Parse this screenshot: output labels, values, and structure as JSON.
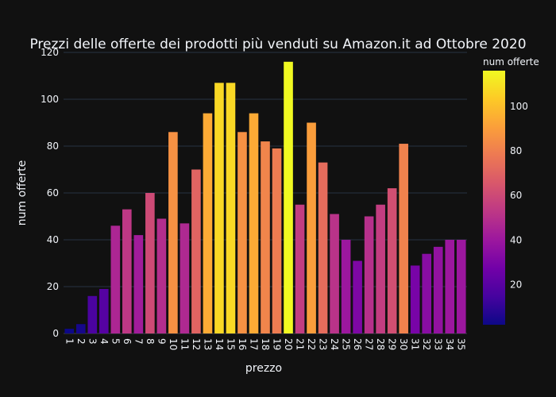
{
  "chart_data": {
    "type": "bar",
    "title": "Prezzi delle offerte dei prodotti più venduti su Amazon.it ad Ottobre 2020",
    "xlabel": "prezzo",
    "ylabel": "num offerte",
    "categories": [
      "1",
      "2",
      "3",
      "4",
      "5",
      "6",
      "7",
      "8",
      "9",
      "10",
      "11",
      "12",
      "13",
      "14",
      "15",
      "16",
      "17",
      "18",
      "19",
      "20",
      "21",
      "22",
      "23",
      "24",
      "25",
      "26",
      "27",
      "28",
      "29",
      "30",
      "31",
      "32",
      "33",
      "34",
      "35"
    ],
    "values": [
      2,
      4,
      16,
      19,
      46,
      53,
      42,
      60,
      49,
      86,
      47,
      70,
      94,
      107,
      107,
      86,
      94,
      82,
      79,
      116,
      55,
      90,
      73,
      51,
      40,
      31,
      50,
      55,
      62,
      81,
      29,
      34,
      37,
      40,
      40
    ],
    "ylim": [
      0,
      120
    ],
    "yticks": [
      0,
      20,
      40,
      60,
      80,
      100,
      120
    ],
    "grid": true,
    "colorbar": {
      "title": "num offerte",
      "ticks": [
        20,
        40,
        60,
        80,
        100
      ],
      "min": 2,
      "max": 116,
      "colors": [
        "#0d0887",
        "#46039f",
        "#7201a8",
        "#9c179e",
        "#bd3786",
        "#d8576b",
        "#ed7953",
        "#fb9f3a",
        "#fdca26",
        "#f0f921"
      ]
    }
  }
}
